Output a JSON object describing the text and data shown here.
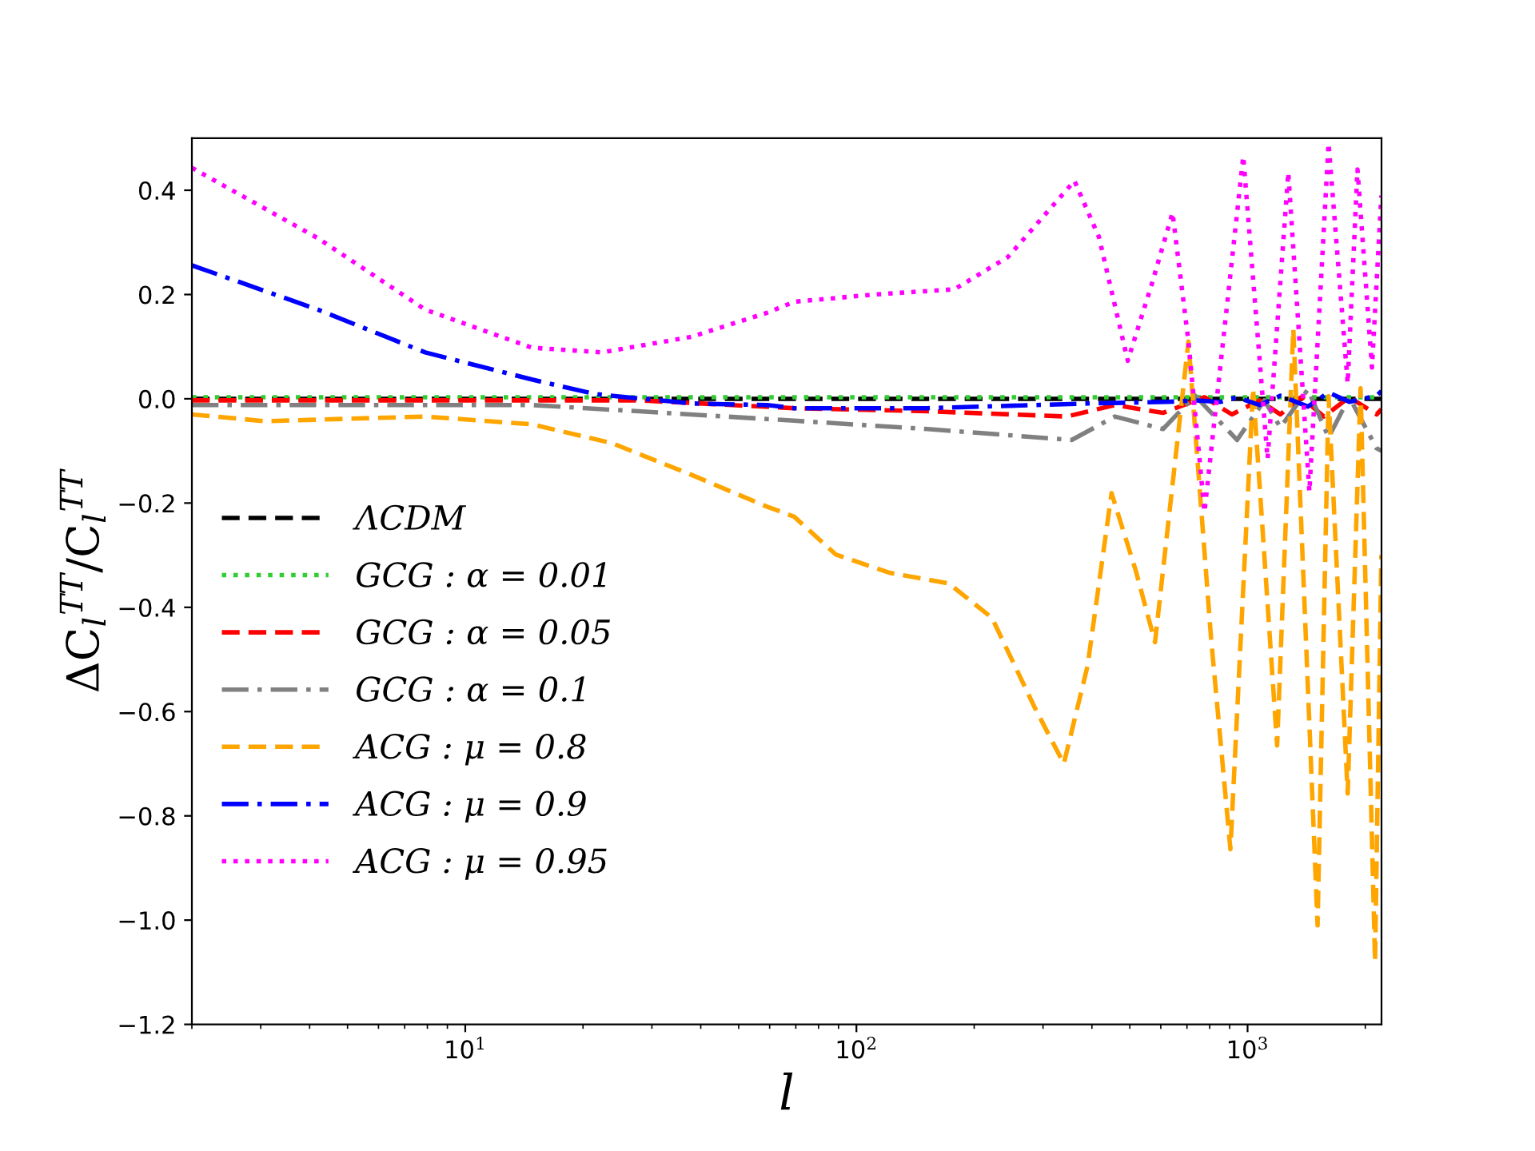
{
  "chart_data": {
    "type": "line",
    "xlabel": "l",
    "ylabel": "ΔC$_{l}$$^{TT}$/C$_{l}$$^{TT}$",
    "log": "x",
    "xlim": [
      2,
      2200
    ],
    "xticks": [
      {
        "value": 10,
        "label": "10$^{1}$"
      },
      {
        "value": 100,
        "label": "10$^{2}$"
      },
      {
        "value": 1000,
        "label": "10$^{3}$"
      }
    ],
    "ylim": [
      -1.2,
      0.5
    ],
    "yticks": [
      {
        "value": -1.2,
        "label": "−1.2"
      },
      {
        "value": -1.0,
        "label": "−1.0"
      },
      {
        "value": -0.8,
        "label": "−0.8"
      },
      {
        "value": -0.6,
        "label": "−0.6"
      },
      {
        "value": -0.4,
        "label": "−0.4"
      },
      {
        "value": -0.2,
        "label": "−0.2"
      },
      {
        "value": 0.0,
        "label": "0.0"
      },
      {
        "value": 0.2,
        "label": "0.2"
      },
      {
        "value": 0.4,
        "label": "0.4"
      }
    ],
    "grid": false,
    "legend": "left",
    "series": [
      {
        "name": "ΛCDM",
        "color": "#000000",
        "line_style": "dashed",
        "x": [
          2,
          2200
        ],
        "values": [
          0,
          0
        ]
      },
      {
        "name": "GCG : α = 0.01",
        "color": "#32cd32",
        "line_style": "dotted",
        "x": [
          2,
          2200
        ],
        "values": [
          0.003,
          0.003
        ]
      },
      {
        "name": "GCG : α = 0.05",
        "color": "#ff0000",
        "line_style": "dashed",
        "x": [
          2,
          27.8,
          69.3,
          152,
          345,
          458,
          608,
          776,
          912,
          1072,
          1213,
          1371,
          1567,
          1820,
          2138,
          2200
        ],
        "values": [
          -0.003,
          -0.003,
          -0.018,
          -0.024,
          -0.034,
          -0.012,
          -0.027,
          0.003,
          -0.03,
          -0.003,
          -0.03,
          0.003,
          -0.034,
          0.003,
          -0.03,
          -0.02
        ]
      },
      {
        "name": "GCG : α = 0.1",
        "color": "#808080",
        "line_style": "dashdot",
        "x": [
          2,
          14.8,
          27.8,
          69.3,
          152,
          355,
          458,
          608,
          734,
          940,
          1104,
          1213,
          1426,
          1611,
          1820,
          2138,
          2200
        ],
        "values": [
          -0.012,
          -0.012,
          -0.024,
          -0.042,
          -0.058,
          -0.079,
          -0.034,
          -0.058,
          0.006,
          -0.079,
          -0.003,
          -0.055,
          0.018,
          -0.074,
          0.003,
          -0.095,
          -0.1
        ]
      },
      {
        "name": "ACG : μ = 0.8",
        "color": "#ffa500",
        "line_style": "dashed",
        "x": [
          2,
          3.08,
          7.9,
          14.8,
          23.7,
          37.9,
          59.1,
          69.3,
          88.7,
          122,
          172,
          222,
          286,
          339,
          390,
          449,
          518,
          580,
          706,
          807,
          904,
          1033,
          1190,
          1309,
          1510,
          1611,
          1803,
          1945,
          2118,
          2198
        ],
        "values": [
          -0.03,
          -0.043,
          -0.034,
          -0.049,
          -0.085,
          -0.146,
          -0.207,
          -0.226,
          -0.299,
          -0.334,
          -0.354,
          -0.42,
          -0.593,
          -0.7,
          -0.512,
          -0.181,
          -0.33,
          -0.467,
          0.11,
          -0.461,
          -0.864,
          0.02,
          -0.665,
          0.134,
          -1.01,
          0.005,
          -0.757,
          0.02,
          -1.08,
          -0.3
        ]
      },
      {
        "name": "ACG : μ = 0.9",
        "color": "#0000ff",
        "line_style": "dashdot",
        "x": [
          2,
          4.2,
          7.9,
          14.8,
          21.5,
          37.9,
          59.1,
          69.3,
          152,
          390,
          625,
          734,
          853,
          940,
          1072,
          1213,
          1426,
          1611,
          1820,
          2138,
          2200
        ],
        "values": [
          0.256,
          0.171,
          0.089,
          0.037,
          0.009,
          -0.009,
          -0.012,
          -0.018,
          -0.018,
          -0.009,
          -0.006,
          -0.003,
          -0.006,
          0.003,
          -0.012,
          0.006,
          -0.015,
          0.012,
          -0.006,
          0.006,
          0.015
        ]
      },
      {
        "name": "ACG : μ = 0.95",
        "color": "#ff00ff",
        "line_style": "dotted",
        "x": [
          2,
          4.2,
          7.9,
          14.8,
          22.4,
          37.9,
          59.1,
          69.3,
          111,
          178,
          244,
          361,
          417,
          494,
          569,
          643,
          706,
          776,
          975,
          1125,
          1271,
          1439,
          1611,
          1803,
          1910,
          2080,
          2198
        ],
        "values": [
          0.443,
          0.308,
          0.171,
          0.098,
          0.089,
          0.119,
          0.165,
          0.186,
          0.2,
          0.21,
          0.272,
          0.418,
          0.31,
          0.073,
          0.22,
          0.357,
          0.11,
          -0.217,
          0.465,
          -0.115,
          0.434,
          -0.178,
          0.49,
          0.03,
          0.44,
          0.06,
          0.39
        ]
      }
    ]
  }
}
